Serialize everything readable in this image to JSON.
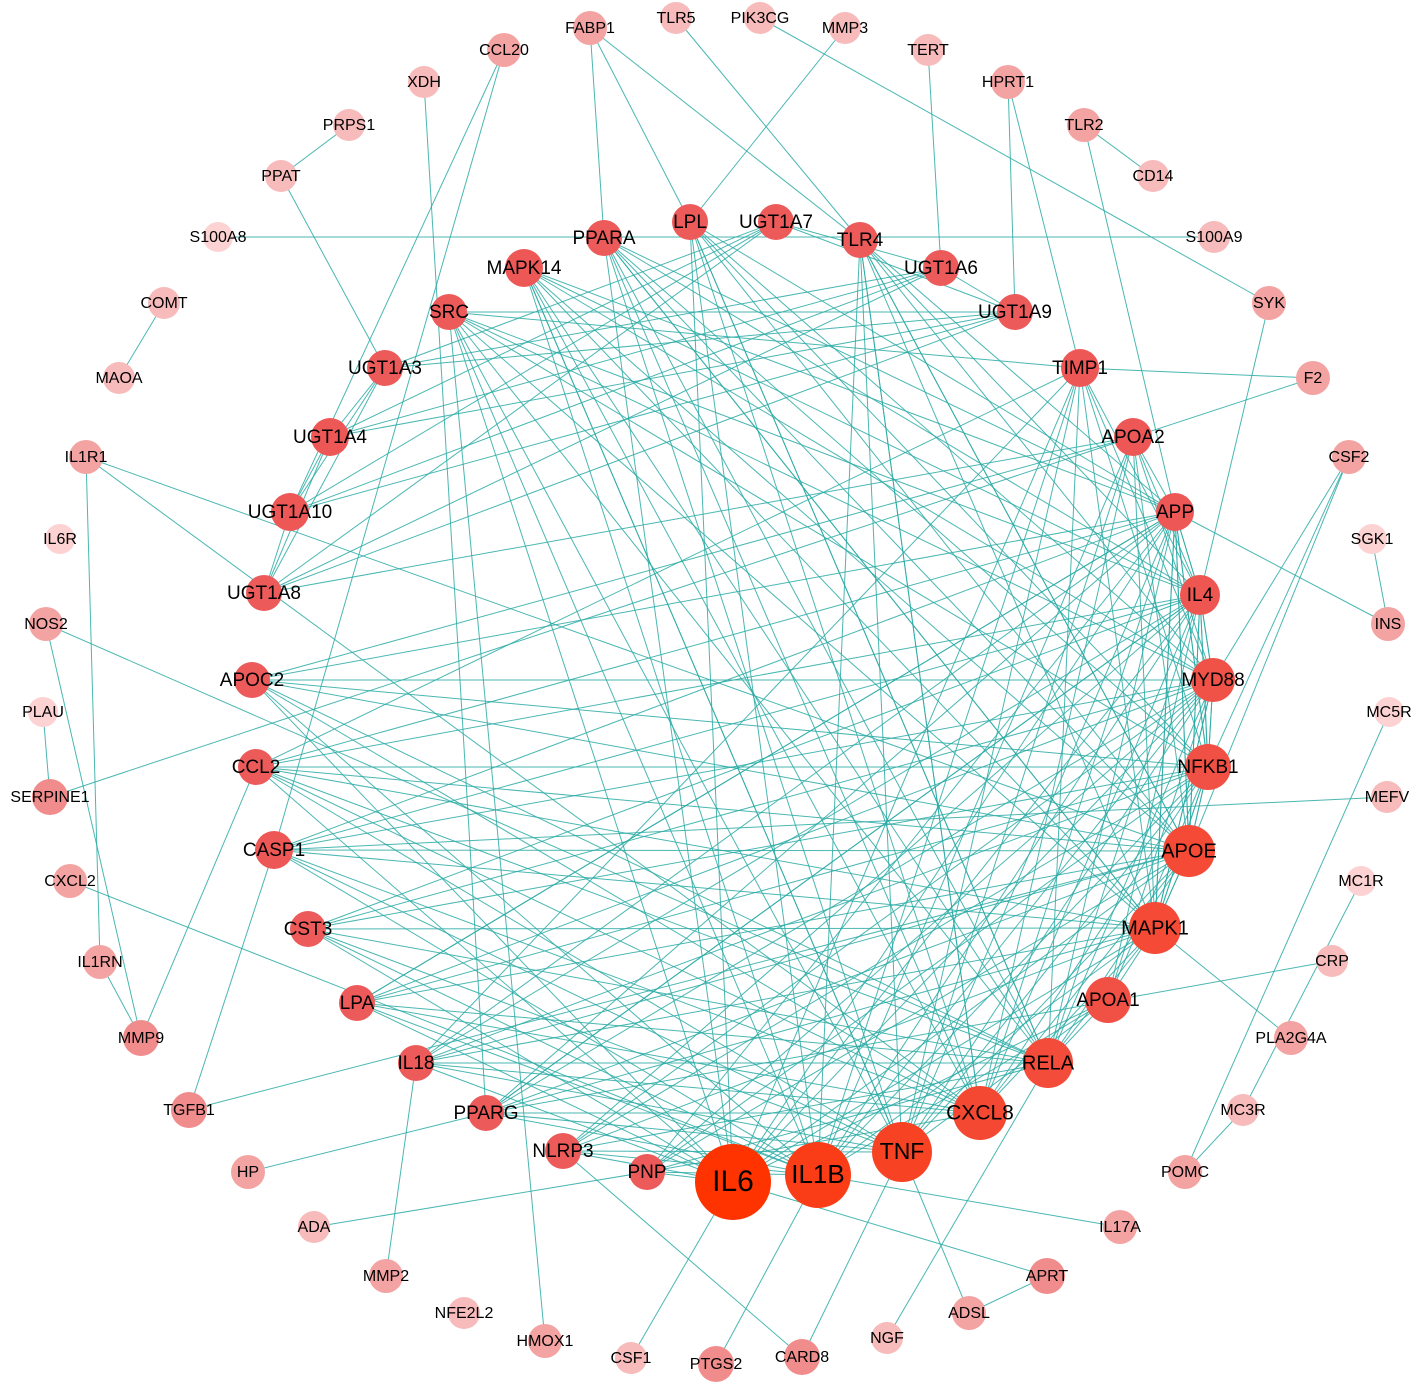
{
  "nodes": [
    {
      "label": "IL6"
    },
    {
      "label": "IL1B"
    },
    {
      "label": "TNF"
    },
    {
      "label": "CXCL8"
    },
    {
      "label": "RELA"
    },
    {
      "label": "APOA1"
    },
    {
      "label": "MAPK1"
    },
    {
      "label": "APOE"
    },
    {
      "label": "NFKB1"
    },
    {
      "label": "MYD88"
    },
    {
      "label": "IL4"
    },
    {
      "label": "APP"
    },
    {
      "label": "APOA2"
    },
    {
      "label": "TIMP1"
    },
    {
      "label": "UGT1A9"
    },
    {
      "label": "UGT1A6"
    },
    {
      "label": "TLR4"
    },
    {
      "label": "UGT1A7"
    },
    {
      "label": "LPL"
    },
    {
      "label": "PPARA"
    },
    {
      "label": "MAPK14"
    },
    {
      "label": "SRC"
    },
    {
      "label": "UGT1A3"
    },
    {
      "label": "UGT1A4"
    },
    {
      "label": "UGT1A10"
    },
    {
      "label": "UGT1A8"
    },
    {
      "label": "APOC2"
    },
    {
      "label": "CCL2"
    },
    {
      "label": "CASP1"
    },
    {
      "label": "CST3"
    },
    {
      "label": "LPA"
    },
    {
      "label": "IL18"
    },
    {
      "label": "PPARG"
    },
    {
      "label": "NLRP3"
    },
    {
      "label": "PNP"
    },
    {
      "label": "FABP1"
    },
    {
      "label": "TLR5"
    },
    {
      "label": "PIK3CG"
    },
    {
      "label": "MMP3"
    },
    {
      "label": "TERT"
    },
    {
      "label": "HPRT1"
    },
    {
      "label": "TLR2"
    },
    {
      "label": "CD14"
    },
    {
      "label": "S100A9"
    },
    {
      "label": "SYK"
    },
    {
      "label": "F2"
    },
    {
      "label": "CSF2"
    },
    {
      "label": "SGK1"
    },
    {
      "label": "INS"
    },
    {
      "label": "MC5R"
    },
    {
      "label": "MEFV"
    },
    {
      "label": "MC1R"
    },
    {
      "label": "CRP"
    },
    {
      "label": "PLA2G4A"
    },
    {
      "label": "MC3R"
    },
    {
      "label": "POMC"
    },
    {
      "label": "IL17A"
    },
    {
      "label": "APRT"
    },
    {
      "label": "ADSL"
    },
    {
      "label": "NGF"
    },
    {
      "label": "CARD8"
    },
    {
      "label": "PTGS2"
    },
    {
      "label": "CSF1"
    },
    {
      "label": "HMOX1"
    },
    {
      "label": "NFE2L2"
    },
    {
      "label": "MMP2"
    },
    {
      "label": "ADA"
    },
    {
      "label": "HP"
    },
    {
      "label": "TGFB1"
    },
    {
      "label": "MMP9"
    },
    {
      "label": "IL1RN"
    },
    {
      "label": "CXCL2"
    },
    {
      "label": "SERPINE1"
    },
    {
      "label": "PLAU"
    },
    {
      "label": "NOS2"
    },
    {
      "label": "IL6R"
    },
    {
      "label": "IL1R1"
    },
    {
      "label": "MAOA"
    },
    {
      "label": "COMT"
    },
    {
      "label": "S100A8"
    },
    {
      "label": "PPAT"
    },
    {
      "label": "PRPS1"
    },
    {
      "label": "XDH"
    },
    {
      "label": "CCL20"
    }
  ]
}
